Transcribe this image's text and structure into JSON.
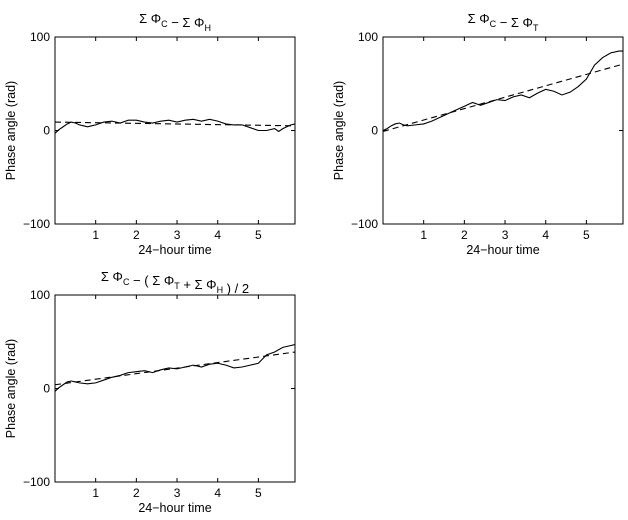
{
  "chart_data": [
    {
      "type": "line",
      "title": {
        "parts": [
          {
            "t": "Σ Φ"
          },
          {
            "t": "C",
            "sub": true
          },
          {
            "t": " − Σ Φ"
          },
          {
            "t": "H",
            "sub": true
          }
        ]
      },
      "xlabel": "24−hour time",
      "ylabel": "Phase angle (rad)",
      "xlim": [
        0,
        5.9
      ],
      "ylim": [
        -100,
        100
      ],
      "xticks": [
        1,
        2,
        3,
        4,
        5
      ],
      "yticks": [
        -100,
        0,
        100
      ],
      "series": [
        {
          "style": "solid",
          "x": [
            0,
            0.1,
            0.2,
            0.3,
            0.4,
            0.5,
            0.6,
            0.7,
            0.8,
            0.9,
            1.0,
            1.2,
            1.4,
            1.6,
            1.8,
            2.0,
            2.2,
            2.4,
            2.6,
            2.8,
            3.0,
            3.2,
            3.4,
            3.6,
            3.8,
            4.0,
            4.2,
            4.4,
            4.6,
            4.8,
            5.0,
            5.2,
            5.4,
            5.5,
            5.6,
            5.7,
            5.8,
            5.9
          ],
          "y": [
            -3,
            1,
            4,
            7,
            9,
            8,
            6,
            5,
            4,
            5,
            6,
            9,
            10,
            8,
            11,
            11,
            9,
            8,
            10,
            11,
            9,
            11,
            12,
            10,
            12,
            10,
            7,
            6,
            6,
            3,
            0,
            0,
            2,
            -1,
            2,
            4,
            6,
            7
          ]
        },
        {
          "style": "dashed",
          "x": [
            0,
            5.9
          ],
          "y": [
            9,
            5
          ]
        }
      ]
    },
    {
      "type": "line",
      "title": {
        "parts": [
          {
            "t": "Σ Φ"
          },
          {
            "t": "C",
            "sub": true
          },
          {
            "t": " − Σ Φ"
          },
          {
            "t": "T",
            "sub": true
          }
        ]
      },
      "xlabel": "24−hour time",
      "ylabel": "Phase angle (rad)",
      "xlim": [
        0,
        5.9
      ],
      "ylim": [
        -100,
        100
      ],
      "xticks": [
        1,
        2,
        3,
        4,
        5
      ],
      "yticks": [
        -100,
        0,
        100
      ],
      "series": [
        {
          "style": "solid",
          "x": [
            0,
            0.1,
            0.2,
            0.3,
            0.4,
            0.5,
            0.6,
            0.8,
            1.0,
            1.2,
            1.4,
            1.6,
            1.8,
            2.0,
            2.2,
            2.4,
            2.6,
            2.8,
            3.0,
            3.2,
            3.4,
            3.6,
            3.8,
            4.0,
            4.2,
            4.4,
            4.6,
            4.8,
            5.0,
            5.2,
            5.4,
            5.6,
            5.8,
            5.9
          ],
          "y": [
            0,
            2,
            5,
            7,
            8,
            6,
            5,
            6,
            7,
            10,
            14,
            18,
            22,
            26,
            30,
            27,
            30,
            33,
            32,
            36,
            38,
            35,
            40,
            44,
            42,
            38,
            41,
            47,
            55,
            70,
            78,
            83,
            85,
            85
          ]
        },
        {
          "style": "dashed",
          "x": [
            0,
            5.9
          ],
          "y": [
            -1,
            71
          ]
        }
      ]
    },
    {
      "type": "line",
      "title": {
        "parts": [
          {
            "t": "Σ Φ"
          },
          {
            "t": "C",
            "sub": true
          },
          {
            "t": " − ( Σ Φ"
          },
          {
            "t": "T",
            "sub": true
          },
          {
            "t": " + Σ Φ"
          },
          {
            "t": "H",
            "sub": true
          },
          {
            "t": " ) / 2"
          }
        ]
      },
      "xlabel": "24−hour time",
      "ylabel": "Phase angle (rad)",
      "xlim": [
        0,
        5.9
      ],
      "ylim": [
        -100,
        100
      ],
      "xticks": [
        1,
        2,
        3,
        4,
        5
      ],
      "yticks": [
        -100,
        0,
        100
      ],
      "series": [
        {
          "style": "solid",
          "x": [
            0,
            0.1,
            0.2,
            0.3,
            0.4,
            0.5,
            0.6,
            0.8,
            1.0,
            1.2,
            1.4,
            1.6,
            1.8,
            2.0,
            2.2,
            2.4,
            2.6,
            2.8,
            3.0,
            3.2,
            3.4,
            3.6,
            3.8,
            4.0,
            4.2,
            4.4,
            4.6,
            4.8,
            5.0,
            5.2,
            5.4,
            5.6,
            5.8,
            5.9
          ],
          "y": [
            -3,
            1,
            4,
            7,
            8,
            7,
            6,
            5,
            6,
            9,
            12,
            14,
            17,
            18,
            19,
            17,
            20,
            22,
            21,
            23,
            25,
            23,
            26,
            27,
            25,
            22,
            23,
            25,
            27,
            36,
            39,
            44,
            46,
            47
          ]
        },
        {
          "style": "dashed",
          "x": [
            0,
            5.9
          ],
          "y": [
            4,
            39
          ]
        }
      ]
    }
  ]
}
